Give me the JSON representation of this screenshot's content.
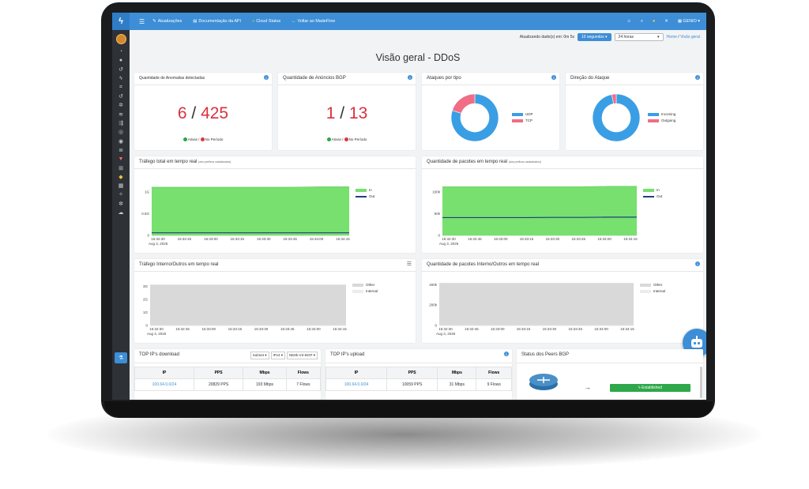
{
  "topbar": {
    "nav": [
      "Atualizações",
      "Documentação da API",
      "Cloud Status",
      "Voltar ao MadeFlow"
    ],
    "user": "GENIO"
  },
  "filters": {
    "refresh_label": "Atualizando dado(s) em: 0m 5s",
    "interval": "10 segundos",
    "range": "24 horas",
    "breadcrumb_home": "Home",
    "breadcrumb_current": "Visão geral"
  },
  "page_title": "Visão geral - DDoS",
  "cards": {
    "anomalies": {
      "title": "Quantidade de Anomalias detectadas",
      "active": "6",
      "period": "425",
      "legend_active": "Ativas",
      "legend_period": "No Período"
    },
    "bgp": {
      "title": "Quantidade de Anúncios BGP",
      "active": "1",
      "period": "13",
      "legend_active": "Ativas",
      "legend_period": "No Período"
    },
    "attack_type": {
      "title": "Ataques por tipo",
      "legend": [
        "UDP",
        "TCP"
      ]
    },
    "direction": {
      "title": "Direção do Ataque",
      "legend": [
        "Incoming",
        "Outgoing"
      ]
    },
    "traffic": {
      "title": "Tráfego total em tempo real",
      "subtitle": "(dos prefixos cadastrados)",
      "legend": [
        "In",
        "Out"
      ]
    },
    "packets": {
      "title": "Quantidade de pacotes em tempo real",
      "subtitle": "(dos prefixos cadastrados)",
      "legend": [
        "In",
        "Out"
      ]
    },
    "internal_traffic": {
      "title": "Tráfego Interno/Outros em tempo real",
      "legend": [
        "Other",
        "Internal"
      ]
    },
    "internal_packets": {
      "title": "Quantidade de pacotes Interno/Outros em tempo real",
      "legend": [
        "Other",
        "Internal"
      ]
    },
    "top_download": {
      "title": "TOP IP's download",
      "selects": [
        "Subnet",
        "IPv4",
        "NE8k-VS-BGP"
      ],
      "headers": [
        "IP",
        "PPS",
        "Mbps",
        "Flows"
      ],
      "rows": [
        [
          "100.64.0.0/24",
          "20829 PPS",
          "193 Mbps",
          "7 Flows"
        ]
      ]
    },
    "top_upload": {
      "title": "TOP IP's upload",
      "headers": [
        "IP",
        "PPS",
        "Mbps",
        "Flows"
      ],
      "rows": [
        [
          "100.64.0.0/24",
          "10059 PPS",
          "31 Mbps",
          "9 Flows"
        ]
      ]
    },
    "peers": {
      "title": "Status dos Peers BGP",
      "status": "Established"
    }
  },
  "x_ticks": [
    "15:32:30",
    "15:32:45",
    "15:33:00",
    "15:33:15",
    "15:33:30",
    "15:33:45",
    "15:34:00",
    "15:34:15"
  ],
  "x_date": "Aug 3, 2026",
  "colors": {
    "accent": "#3d8ed6",
    "red": "#d9303e",
    "green_fill": "#77e06f",
    "pie_blue": "#3a9ee4",
    "pie_pink": "#f06d85",
    "gray_fill": "#d9d9d9"
  },
  "chart_data": [
    {
      "type": "pie",
      "title": "Ataques por tipo",
      "labels": [
        "UDP",
        "TCP"
      ],
      "values": [
        80,
        20
      ]
    },
    {
      "type": "pie",
      "title": "Direção do Ataque",
      "labels": [
        "Incoming",
        "Outgoing"
      ],
      "values": [
        97,
        3
      ]
    },
    {
      "type": "area",
      "title": "Tráfego total em tempo real",
      "categories": [
        "15:32:30",
        "15:32:45",
        "15:33:00",
        "15:33:15",
        "15:33:30",
        "15:33:45",
        "15:34:00",
        "15:34:15"
      ],
      "y_ticks": [
        "0",
        "0.5G",
        "1G"
      ],
      "ylim": [
        0,
        1.2
      ],
      "series": [
        {
          "name": "In",
          "values": [
            1.11,
            1.11,
            1.11,
            1.11,
            1.11,
            1.11,
            1.12,
            1.12
          ]
        },
        {
          "name": "Out",
          "values": [
            0.06,
            0.06,
            0.06,
            0.06,
            0.06,
            0.06,
            0.06,
            0.06
          ]
        }
      ]
    },
    {
      "type": "area",
      "title": "Quantidade de pacotes em tempo real",
      "categories": [
        "15:32:30",
        "15:32:45",
        "15:33:00",
        "15:33:15",
        "15:33:30",
        "15:33:45",
        "15:34:00",
        "15:34:15"
      ],
      "y_ticks": [
        "0",
        "50k",
        "100k"
      ],
      "ylim": [
        0,
        120000
      ],
      "series": [
        {
          "name": "In",
          "values": [
            112000,
            112000,
            112000,
            112000,
            112000,
            112000,
            113000,
            113000
          ]
        },
        {
          "name": "Out",
          "values": [
            41000,
            41000,
            41000,
            41000,
            41500,
            41500,
            42000,
            42000
          ]
        }
      ]
    },
    {
      "type": "area",
      "title": "Tráfego Interno/Outros em tempo real",
      "categories": [
        "15:32:30",
        "15:32:45",
        "15:33:00",
        "15:33:15",
        "15:33:30",
        "15:33:45",
        "15:34:00",
        "15:34:15"
      ],
      "y_ticks": [
        "0",
        "1G",
        "2G",
        "3G"
      ],
      "ylim": [
        0,
        3.5
      ],
      "series": [
        {
          "name": "Other",
          "values": [
            3.1,
            3.1,
            3.1,
            3.1,
            3.1,
            3.1,
            3.1,
            3.1
          ]
        },
        {
          "name": "Internal",
          "values": [
            0,
            0,
            0,
            0,
            0,
            0,
            0,
            0
          ]
        }
      ]
    },
    {
      "type": "area",
      "title": "Quantidade de pacotes Interno/Outros em tempo real",
      "categories": [
        "15:32:30",
        "15:32:45",
        "15:33:00",
        "15:33:15",
        "15:33:30",
        "15:33:45",
        "15:34:00",
        "15:34:15"
      ],
      "y_ticks": [
        "0",
        "200k",
        "400k"
      ],
      "ylim": [
        0,
        450000
      ],
      "series": [
        {
          "name": "Other",
          "values": [
            415000,
            415000,
            415000,
            415000,
            415000,
            415000,
            415000,
            415000
          ]
        },
        {
          "name": "Internal",
          "values": [
            0,
            0,
            0,
            0,
            0,
            0,
            0,
            0
          ]
        }
      ]
    }
  ]
}
